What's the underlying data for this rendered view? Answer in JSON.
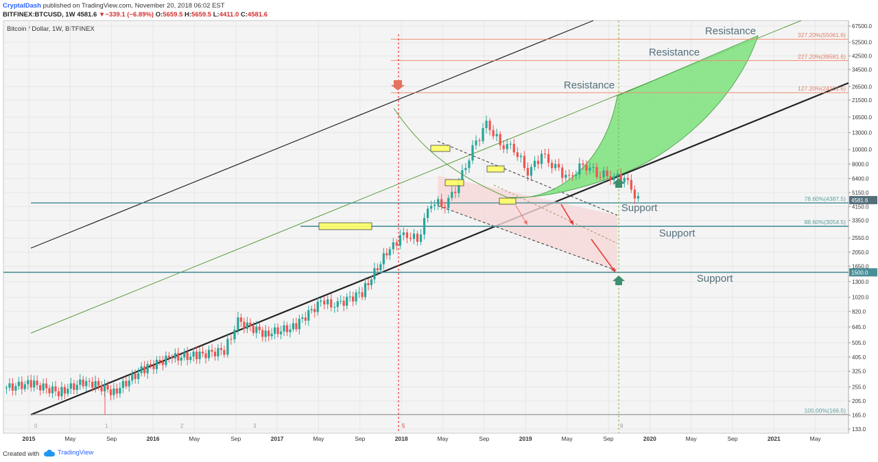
{
  "header": {
    "author": "CryptalDash",
    "published": "published on TradingView.com, November 20, 2018 06:02 EST",
    "symbol": "BITFINEX:BTCUSD, 1W",
    "last": "4581.6",
    "change_arrow": "▼",
    "change": "−339.1 (−6.89%)",
    "o_label": "O:",
    "o_value": "5659.5",
    "h_label": "H:",
    "h_value": "5659.5",
    "l_label": "L:",
    "l_value": "4411.0",
    "c_label": "C:",
    "c_value": "4581.6"
  },
  "footer": {
    "created": "Created with",
    "brand": "TradingView"
  },
  "colors": {
    "up": "#26a69a",
    "down": "#ef5350",
    "support": "#4a8f98",
    "fib": "#ef8a70",
    "green_zone": "#7de37d",
    "pink_zone": "#f7d8d8",
    "vline": "#e53935",
    "vline2": "#7cb342"
  },
  "chart_data": {
    "type": "candlestick",
    "title": "Bitcoin / Dollar, 1W, BITFINEX",
    "scale": "log",
    "grid": true,
    "price_ticks": [
      67500.0,
      52500.0,
      42500.0,
      34500.0,
      26500.0,
      21500.0,
      16500.0,
      13000.0,
      10000.0,
      8000.0,
      6400.0,
      5150.0,
      4150.0,
      3350.0,
      2550.0,
      2050.0,
      1650.0,
      1300.0,
      1020.0,
      820.0,
      645.0,
      505.0,
      405.0,
      325.0,
      255.0,
      205.0,
      165.0,
      133.0
    ],
    "time_ticks": [
      "2015",
      "May",
      "Sep",
      "2016",
      "May",
      "Sep",
      "2017",
      "May",
      "Sep",
      "2018",
      "May",
      "Sep",
      "2019",
      "May",
      "Sep",
      "2020",
      "May",
      "Sep",
      "2021",
      "May"
    ],
    "bold_time_ticks": [
      "2015",
      "2016",
      "2017",
      "2018",
      "2019",
      "2020",
      "2021"
    ],
    "last_price_tag": "4581.6",
    "support_tag": "1500.0",
    "fib_levels": [
      {
        "label": "327.20%(55061.6)",
        "price": 55061.6
      },
      {
        "label": "227.20%(39581.6)",
        "price": 39581.6
      },
      {
        "label": "127.20%(24101.6)",
        "price": 24101.6
      },
      {
        "label": "78.60%(4387.5)",
        "price": 4387.5
      },
      {
        "label": "88.60%(3054.5)",
        "price": 3054.5
      },
      {
        "label": "100.00%(166.5)",
        "price": 166.5
      }
    ],
    "support_levels": [
      4387.5,
      3054.5,
      1500.0
    ],
    "annotations": [
      "Resistance",
      "Resistance",
      "Resistance",
      "Support",
      "Support",
      "Support"
    ],
    "markers": [
      "0",
      "1",
      "2",
      "3",
      "5",
      "8"
    ],
    "weekly_closes": [
      {
        "date": "2015-01",
        "price": 250
      },
      {
        "date": "2015-03",
        "price": 270
      },
      {
        "date": "2015-05",
        "price": 235
      },
      {
        "date": "2015-07",
        "price": 280
      },
      {
        "date": "2015-09",
        "price": 235
      },
      {
        "date": "2015-11",
        "price": 330
      },
      {
        "date": "2016-01",
        "price": 400
      },
      {
        "date": "2016-03",
        "price": 415
      },
      {
        "date": "2016-05",
        "price": 450
      },
      {
        "date": "2016-06",
        "price": 700
      },
      {
        "date": "2016-08",
        "price": 580
      },
      {
        "date": "2016-10",
        "price": 640
      },
      {
        "date": "2016-12",
        "price": 950
      },
      {
        "date": "2017-01",
        "price": 900
      },
      {
        "date": "2017-03",
        "price": 1100
      },
      {
        "date": "2017-05",
        "price": 2200
      },
      {
        "date": "2017-06",
        "price": 2700
      },
      {
        "date": "2017-07",
        "price": 2500
      },
      {
        "date": "2017-08",
        "price": 4500
      },
      {
        "date": "2017-09",
        "price": 4200
      },
      {
        "date": "2017-10",
        "price": 6000
      },
      {
        "date": "2017-11",
        "price": 10000
      },
      {
        "date": "2017-12",
        "price": 15000
      },
      {
        "date": "2018-01",
        "price": 11000
      },
      {
        "date": "2018-02",
        "price": 10300
      },
      {
        "date": "2018-03",
        "price": 7000
      },
      {
        "date": "2018-04",
        "price": 9200
      },
      {
        "date": "2018-05",
        "price": 7500
      },
      {
        "date": "2018-06",
        "price": 6400
      },
      {
        "date": "2018-07",
        "price": 8000
      },
      {
        "date": "2018-08",
        "price": 7000
      },
      {
        "date": "2018-09",
        "price": 6600
      },
      {
        "date": "2018-10",
        "price": 6400
      },
      {
        "date": "2018-11",
        "price": 4581.6
      }
    ],
    "candle_xrange": [
      "2014-12",
      "2018-11"
    ]
  }
}
